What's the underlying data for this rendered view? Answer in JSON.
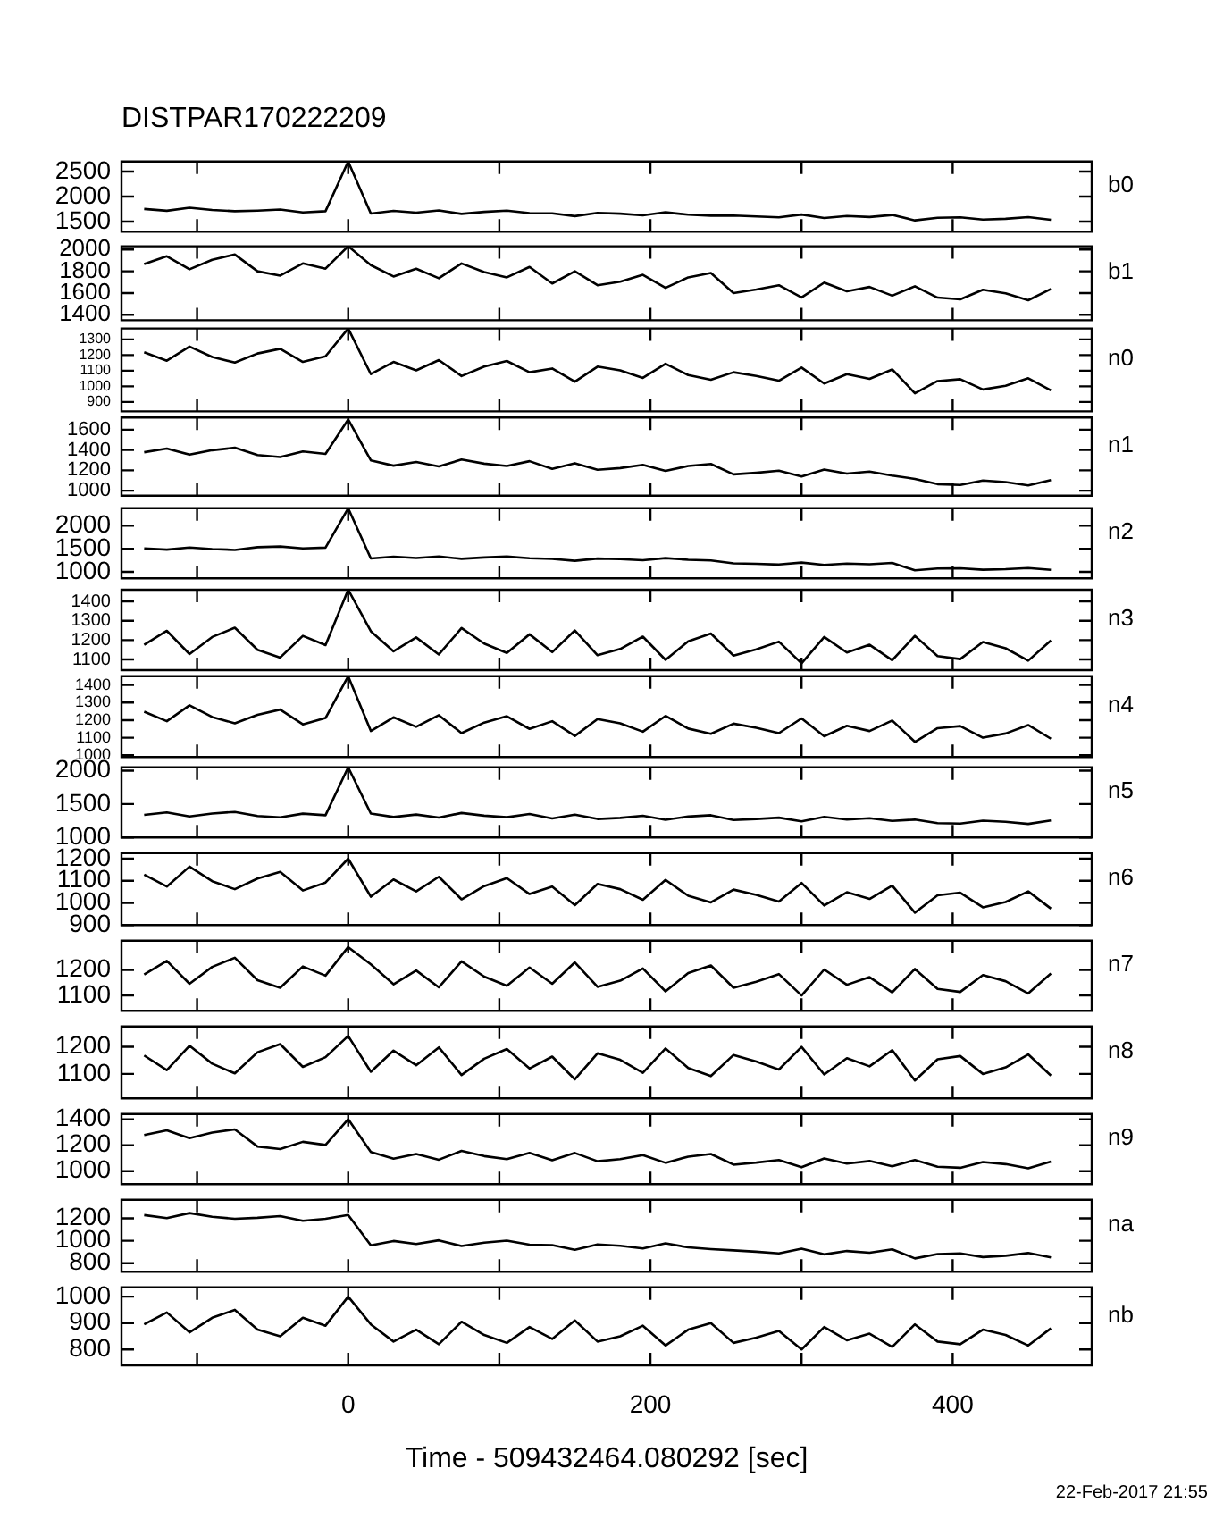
{
  "chart_data": [
    {
      "type": "line",
      "title": "DISTPAR170222209",
      "y2label": "b0",
      "tick_labels": "y",
      "xlim": [
        -150,
        492
      ],
      "xticks": [
        {
          "value": -100,
          "label": null
        },
        0,
        {
          "value": 100,
          "label": null
        },
        200,
        {
          "value": 300,
          "label": null
        },
        400
      ],
      "ylim": [
        1300,
        2700
      ],
      "yticks": [
        1500,
        2000,
        2500
      ],
      "x": [
        -135,
        -120,
        -105,
        -90,
        -75,
        -60,
        -45,
        -30,
        -15,
        0,
        15,
        30,
        45,
        60,
        75,
        90,
        105,
        120,
        135,
        150,
        165,
        180,
        195,
        210,
        225,
        240,
        255,
        270,
        285,
        300,
        315,
        330,
        345,
        360,
        375,
        390,
        405,
        420,
        435,
        450,
        465
      ],
      "series": [
        {
          "color": "#000000",
          "values": [
            1752,
            1716,
            1776,
            1732,
            1708,
            1720,
            1740,
            1684,
            1708,
            2700,
            1662,
            1714,
            1678,
            1722,
            1654,
            1694,
            1718,
            1670,
            1666,
            1610,
            1674,
            1658,
            1626,
            1686,
            1638,
            1618,
            1620,
            1604,
            1584,
            1640,
            1572,
            1612,
            1592,
            1632,
            1524,
            1576,
            1584,
            1540,
            1556,
            1588,
            1536
          ]
        }
      ]
    },
    {
      "type": "line",
      "y2label": "b1",
      "tick_labels": "y",
      "xlim": [
        -150,
        492
      ],
      "xticks": [
        {
          "value": -100,
          "label": null
        },
        0,
        {
          "value": 100,
          "label": null
        },
        200,
        {
          "value": 300,
          "label": null
        },
        400
      ],
      "ylim": [
        1350,
        2030
      ],
      "yticks": [
        1400,
        1600,
        1800,
        2000
      ],
      "x": [
        -135,
        -120,
        -105,
        -90,
        -75,
        -60,
        -45,
        -30,
        -15,
        0,
        15,
        30,
        45,
        60,
        75,
        90,
        105,
        120,
        135,
        150,
        165,
        180,
        195,
        210,
        225,
        240,
        255,
        270,
        285,
        300,
        315,
        330,
        345,
        360,
        375,
        390,
        405,
        420,
        435,
        450,
        465
      ],
      "series": [
        {
          "color": "#000000",
          "values": [
            1866,
            1938,
            1818,
            1906,
            1954,
            1800,
            1760,
            1872,
            1824,
            2030,
            1856,
            1752,
            1824,
            1736,
            1872,
            1792,
            1744,
            1840,
            1688,
            1800,
            1672,
            1704,
            1768,
            1648,
            1744,
            1784,
            1600,
            1632,
            1672,
            1560,
            1696,
            1616,
            1656,
            1576,
            1662,
            1558,
            1542,
            1630,
            1598,
            1534,
            1638
          ]
        }
      ]
    },
    {
      "type": "line",
      "y2label": "n0",
      "tick_labels": "y",
      "xlim": [
        -150,
        492
      ],
      "xticks": [
        {
          "value": -100,
          "label": null
        },
        0,
        {
          "value": 100,
          "label": null
        },
        200,
        {
          "value": 300,
          "label": null
        },
        400
      ],
      "ylim": [
        840,
        1370
      ],
      "yticks": [
        900,
        1000,
        1100,
        1200,
        1300
      ],
      "x": [
        -135,
        -120,
        -105,
        -90,
        -75,
        -60,
        -45,
        -30,
        -15,
        0,
        15,
        30,
        45,
        60,
        75,
        90,
        105,
        120,
        135,
        150,
        165,
        180,
        195,
        210,
        225,
        240,
        255,
        270,
        285,
        300,
        315,
        330,
        345,
        360,
        375,
        390,
        405,
        420,
        435,
        450,
        465
      ],
      "series": [
        {
          "color": "#000000",
          "values": [
            1218,
            1164,
            1254,
            1188,
            1152,
            1210,
            1240,
            1156,
            1192,
            1370,
            1078,
            1156,
            1102,
            1168,
            1066,
            1126,
            1162,
            1090,
            1114,
            1030,
            1126,
            1102,
            1054,
            1144,
            1072,
            1042,
            1090,
            1066,
            1036,
            1120,
            1018,
            1078,
            1048,
            1108,
            956,
            1034,
            1046,
            980,
            1004,
            1052,
            974
          ]
        }
      ]
    },
    {
      "type": "line",
      "y2label": "n1",
      "tick_labels": "y",
      "xlim": [
        -150,
        492
      ],
      "xticks": [
        {
          "value": -100,
          "label": null
        },
        0,
        {
          "value": 100,
          "label": null
        },
        200,
        {
          "value": 300,
          "label": null
        },
        400
      ],
      "ylim": [
        950,
        1720
      ],
      "yticks": [
        1000,
        1200,
        1400,
        1600
      ],
      "x": [
        -135,
        -120,
        -105,
        -90,
        -75,
        -60,
        -45,
        -30,
        -15,
        0,
        15,
        30,
        45,
        60,
        75,
        90,
        105,
        120,
        135,
        150,
        165,
        180,
        195,
        210,
        225,
        240,
        255,
        270,
        285,
        300,
        315,
        330,
        345,
        360,
        375,
        390,
        405,
        420,
        435,
        450,
        465
      ],
      "series": [
        {
          "color": "#000000",
          "values": [
            1378,
            1414,
            1354,
            1398,
            1422,
            1350,
            1330,
            1386,
            1362,
            1700,
            1298,
            1246,
            1282,
            1238,
            1306,
            1266,
            1242,
            1290,
            1214,
            1270,
            1206,
            1222,
            1254,
            1194,
            1242,
            1262,
            1160,
            1176,
            1196,
            1140,
            1208,
            1168,
            1188,
            1148,
            1116,
            1064,
            1056,
            1100,
            1084,
            1052,
            1104
          ]
        }
      ]
    },
    {
      "type": "line",
      "y2label": "n2",
      "tick_labels": "y",
      "xlim": [
        -150,
        492
      ],
      "xticks": [
        {
          "value": -100,
          "label": null
        },
        0,
        {
          "value": 100,
          "label": null
        },
        200,
        {
          "value": 300,
          "label": null
        },
        400
      ],
      "ylim": [
        860,
        2380
      ],
      "yticks": [
        1000,
        1500,
        2000
      ],
      "x": [
        -135,
        -120,
        -105,
        -90,
        -75,
        -60,
        -45,
        -30,
        -15,
        0,
        15,
        30,
        45,
        60,
        75,
        90,
        105,
        120,
        135,
        150,
        165,
        180,
        195,
        210,
        225,
        240,
        255,
        270,
        285,
        300,
        315,
        330,
        345,
        360,
        375,
        390,
        405,
        420,
        435,
        450,
        465
      ],
      "series": [
        {
          "color": "#000000",
          "values": [
            1509,
            1482,
            1527,
            1494,
            1476,
            1535,
            1550,
            1508,
            1526,
            2380,
            1289,
            1328,
            1301,
            1334,
            1283,
            1313,
            1331,
            1295,
            1282,
            1240,
            1288,
            1276,
            1252,
            1297,
            1261,
            1246,
            1185,
            1173,
            1158,
            1200,
            1149,
            1179,
            1164,
            1194,
            1033,
            1072,
            1078,
            1045,
            1057,
            1081,
            1042
          ]
        }
      ]
    },
    {
      "type": "line",
      "y2label": "n3",
      "tick_labels": "y",
      "xlim": [
        -150,
        492
      ],
      "xticks": [
        {
          "value": -100,
          "label": null
        },
        0,
        {
          "value": 100,
          "label": null
        },
        200,
        {
          "value": 300,
          "label": null
        },
        400
      ],
      "ylim": [
        1045,
        1460
      ],
      "yticks": [
        1100,
        1200,
        1300,
        1400
      ],
      "x": [
        -135,
        -120,
        -105,
        -90,
        -75,
        -60,
        -45,
        -30,
        -15,
        0,
        15,
        30,
        45,
        60,
        75,
        90,
        105,
        120,
        135,
        150,
        165,
        180,
        195,
        210,
        225,
        240,
        255,
        270,
        285,
        300,
        315,
        330,
        345,
        360,
        375,
        390,
        405,
        420,
        435,
        450,
        465
      ],
      "series": [
        {
          "color": "#000000",
          "values": [
            1176,
            1248,
            1128,
            1216,
            1264,
            1150,
            1110,
            1222,
            1174,
            1460,
            1246,
            1142,
            1214,
            1126,
            1262,
            1182,
            1134,
            1230,
            1138,
            1250,
            1122,
            1154,
            1218,
            1098,
            1194,
            1234,
            1120,
            1152,
            1192,
            1080,
            1216,
            1136,
            1176,
            1096,
            1222,
            1118,
            1102,
            1190,
            1158,
            1094,
            1198
          ]
        }
      ]
    },
    {
      "type": "line",
      "y2label": "n4",
      "tick_labels": "y",
      "xlim": [
        -150,
        492
      ],
      "xticks": [
        {
          "value": -100,
          "label": null
        },
        0,
        {
          "value": 100,
          "label": null
        },
        200,
        {
          "value": 300,
          "label": null
        },
        400
      ],
      "ylim": [
        990,
        1450
      ],
      "yticks": [
        1000,
        1100,
        1200,
        1300,
        1400
      ],
      "x": [
        -135,
        -120,
        -105,
        -90,
        -75,
        -60,
        -45,
        -30,
        -15,
        0,
        15,
        30,
        45,
        60,
        75,
        90,
        105,
        120,
        135,
        150,
        165,
        180,
        195,
        210,
        225,
        240,
        255,
        270,
        285,
        300,
        315,
        330,
        345,
        360,
        375,
        390,
        405,
        420,
        435,
        450,
        465
      ],
      "series": [
        {
          "color": "#000000",
          "values": [
            1248,
            1194,
            1284,
            1218,
            1182,
            1230,
            1260,
            1176,
            1212,
            1450,
            1138,
            1216,
            1162,
            1228,
            1126,
            1186,
            1222,
            1150,
            1194,
            1110,
            1206,
            1182,
            1134,
            1224,
            1152,
            1122,
            1180,
            1156,
            1126,
            1210,
            1108,
            1168,
            1138,
            1198,
            1076,
            1154,
            1166,
            1100,
            1124,
            1172,
            1094
          ]
        }
      ]
    },
    {
      "type": "line",
      "y2label": "n5",
      "tick_labels": "y",
      "xlim": [
        -150,
        492
      ],
      "xticks": [
        {
          "value": -100,
          "label": null
        },
        0,
        {
          "value": 100,
          "label": null
        },
        200,
        {
          "value": 300,
          "label": null
        },
        400
      ],
      "ylim": [
        1000,
        2050
      ],
      "yticks": [
        1000,
        1500,
        2000
      ],
      "x": [
        -135,
        -120,
        -105,
        -90,
        -75,
        -60,
        -45,
        -30,
        -15,
        0,
        15,
        30,
        45,
        60,
        75,
        90,
        105,
        120,
        135,
        150,
        165,
        180,
        195,
        210,
        225,
        240,
        255,
        270,
        285,
        300,
        315,
        330,
        345,
        360,
        375,
        390,
        405,
        420,
        435,
        450,
        465
      ],
      "series": [
        {
          "color": "#000000",
          "values": [
            1338,
            1374,
            1314,
            1358,
            1382,
            1320,
            1300,
            1356,
            1332,
            2050,
            1358,
            1306,
            1342,
            1298,
            1366,
            1326,
            1302,
            1350,
            1284,
            1340,
            1276,
            1292,
            1324,
            1264,
            1312,
            1332,
            1260,
            1276,
            1296,
            1240,
            1308,
            1268,
            1288,
            1248,
            1266,
            1214,
            1206,
            1250,
            1234,
            1202,
            1254
          ]
        }
      ]
    },
    {
      "type": "line",
      "y2label": "n6",
      "tick_labels": "y",
      "xlim": [
        -150,
        492
      ],
      "xticks": [
        {
          "value": -100,
          "label": null
        },
        0,
        {
          "value": 100,
          "label": null
        },
        200,
        {
          "value": 300,
          "label": null
        },
        400
      ],
      "ylim": [
        900,
        1225
      ],
      "yticks": [
        900,
        1000,
        1100,
        1200
      ],
      "x": [
        -135,
        -120,
        -105,
        -90,
        -75,
        -60,
        -45,
        -30,
        -15,
        0,
        15,
        30,
        45,
        60,
        75,
        90,
        105,
        120,
        135,
        150,
        165,
        180,
        195,
        210,
        225,
        240,
        255,
        270,
        285,
        300,
        315,
        330,
        345,
        360,
        375,
        390,
        405,
        420,
        435,
        450,
        465
      ],
      "series": [
        {
          "color": "#000000",
          "values": [
            1128,
            1074,
            1164,
            1098,
            1062,
            1110,
            1140,
            1056,
            1092,
            1200,
            1028,
            1106,
            1052,
            1118,
            1016,
            1076,
            1112,
            1040,
            1074,
            990,
            1086,
            1062,
            1014,
            1104,
            1032,
            1002,
            1060,
            1036,
            1006,
            1090,
            988,
            1048,
            1018,
            1078,
            956,
            1034,
            1046,
            980,
            1004,
            1052,
            974
          ]
        }
      ]
    },
    {
      "type": "line",
      "y2label": "n7",
      "tick_labels": "y",
      "xlim": [
        -150,
        492
      ],
      "xticks": [
        {
          "value": -100,
          "label": null
        },
        0,
        {
          "value": 100,
          "label": null
        },
        200,
        {
          "value": 300,
          "label": null
        },
        400
      ],
      "ylim": [
        1040,
        1315
      ],
      "yticks": [
        1100,
        1200
      ],
      "x": [
        -135,
        -120,
        -105,
        -90,
        -75,
        -60,
        -45,
        -30,
        -15,
        0,
        15,
        30,
        45,
        60,
        75,
        90,
        105,
        120,
        135,
        150,
        165,
        180,
        195,
        210,
        225,
        240,
        255,
        270,
        285,
        300,
        315,
        330,
        345,
        360,
        375,
        390,
        405,
        420,
        435,
        450,
        465
      ],
      "series": [
        {
          "color": "#000000",
          "values": [
            1182,
            1236,
            1146,
            1212,
            1248,
            1160,
            1130,
            1214,
            1178,
            1290,
            1222,
            1144,
            1198,
            1132,
            1234,
            1174,
            1138,
            1210,
            1146,
            1230,
            1134,
            1158,
            1206,
            1116,
            1188,
            1218,
            1130,
            1154,
            1184,
            1100,
            1202,
            1142,
            1172,
            1112,
            1204,
            1126,
            1114,
            1180,
            1156,
            1108,
            1186
          ]
        }
      ]
    },
    {
      "type": "line",
      "y2label": "n8",
      "tick_labels": "y",
      "xlim": [
        -150,
        492
      ],
      "xticks": [
        {
          "value": -100,
          "label": null
        },
        0,
        {
          "value": 100,
          "label": null
        },
        200,
        {
          "value": 300,
          "label": null
        },
        400
      ],
      "ylim": [
        1010,
        1275
      ],
      "yticks": [
        1100,
        1200
      ],
      "x": [
        -135,
        -120,
        -105,
        -90,
        -75,
        -60,
        -45,
        -30,
        -15,
        0,
        15,
        30,
        45,
        60,
        75,
        90,
        105,
        120,
        135,
        150,
        165,
        180,
        195,
        210,
        225,
        240,
        255,
        270,
        285,
        300,
        315,
        330,
        345,
        360,
        375,
        390,
        405,
        420,
        435,
        450,
        465
      ],
      "series": [
        {
          "color": "#000000",
          "values": [
            1168,
            1114,
            1204,
            1138,
            1102,
            1180,
            1210,
            1126,
            1162,
            1240,
            1108,
            1186,
            1132,
            1198,
            1096,
            1156,
            1192,
            1120,
            1164,
            1080,
            1176,
            1152,
            1104,
            1194,
            1122,
            1092,
            1170,
            1146,
            1116,
            1200,
            1098,
            1158,
            1128,
            1188,
            1076,
            1154,
            1166,
            1100,
            1124,
            1172,
            1094
          ]
        }
      ]
    },
    {
      "type": "line",
      "y2label": "n9",
      "tick_labels": "y",
      "xlim": [
        -150,
        492
      ],
      "xticks": [
        {
          "value": -100,
          "label": null
        },
        0,
        {
          "value": 100,
          "label": null
        },
        200,
        {
          "value": 300,
          "label": null
        },
        400
      ],
      "ylim": [
        900,
        1440
      ],
      "yticks": [
        1000,
        1200,
        1400
      ],
      "x": [
        -135,
        -120,
        -105,
        -90,
        -75,
        -60,
        -45,
        -30,
        -15,
        0,
        15,
        30,
        45,
        60,
        75,
        90,
        105,
        120,
        135,
        150,
        165,
        180,
        195,
        210,
        225,
        240,
        255,
        270,
        285,
        300,
        315,
        330,
        345,
        360,
        375,
        390,
        405,
        420,
        435,
        450,
        465
      ],
      "series": [
        {
          "color": "#000000",
          "values": [
            1278,
            1314,
            1254,
            1298,
            1322,
            1190,
            1170,
            1226,
            1202,
            1400,
            1148,
            1096,
            1132,
            1088,
            1156,
            1116,
            1092,
            1140,
            1084,
            1140,
            1076,
            1092,
            1124,
            1064,
            1112,
            1132,
            1050,
            1066,
            1086,
            1030,
            1098,
            1058,
            1078,
            1038,
            1086,
            1034,
            1026,
            1070,
            1054,
            1022,
            1074
          ]
        }
      ]
    },
    {
      "type": "line",
      "y2label": "na",
      "tick_labels": "y",
      "xlim": [
        -150,
        492
      ],
      "xticks": [
        {
          "value": -100,
          "label": null
        },
        0,
        {
          "value": 100,
          "label": null
        },
        200,
        {
          "value": 300,
          "label": null
        },
        400
      ],
      "ylim": [
        725,
        1365
      ],
      "yticks": [
        800,
        1000,
        1200
      ],
      "x": [
        -135,
        -120,
        -105,
        -90,
        -75,
        -60,
        -45,
        -30,
        -15,
        0,
        15,
        30,
        45,
        60,
        75,
        90,
        105,
        120,
        135,
        150,
        165,
        180,
        195,
        210,
        225,
        240,
        255,
        270,
        285,
        300,
        315,
        330,
        345,
        360,
        375,
        390,
        405,
        420,
        435,
        450,
        465
      ],
      "series": [
        {
          "color": "#000000",
          "values": [
            1229,
            1202,
            1247,
            1214,
            1196,
            1205,
            1220,
            1178,
            1196,
            1230,
            959,
            998,
            971,
            1004,
            953,
            983,
            1001,
            965,
            962,
            920,
            968,
            956,
            932,
            977,
            941,
            926,
            915,
            903,
            888,
            930,
            879,
            909,
            894,
            924,
            843,
            882,
            888,
            855,
            867,
            891,
            852
          ]
        }
      ]
    },
    {
      "type": "line",
      "y2label": "nb",
      "xlabel": "Time - 509432464.080292 [sec]",
      "annotations": [
        "22-Feb-2017 21:55"
      ],
      "xlim": [
        -150,
        492
      ],
      "xticks": [
        {
          "value": -100,
          "label": null
        },
        0,
        {
          "value": 100,
          "label": null
        },
        200,
        {
          "value": 300,
          "label": null
        },
        400
      ],
      "ylim": [
        740,
        1035
      ],
      "yticks": [
        800,
        900,
        1000
      ],
      "x": [
        -135,
        -120,
        -105,
        -90,
        -75,
        -60,
        -45,
        -30,
        -15,
        0,
        15,
        30,
        45,
        60,
        75,
        90,
        105,
        120,
        135,
        150,
        165,
        180,
        195,
        210,
        225,
        240,
        255,
        270,
        285,
        300,
        315,
        330,
        345,
        360,
        375,
        390,
        405,
        420,
        435,
        450,
        465
      ],
      "series": [
        {
          "color": "#000000",
          "values": [
            895,
            940,
            865,
            920,
            950,
            875,
            850,
            920,
            890,
            1000,
            895,
            830,
            875,
            820,
            905,
            855,
            825,
            885,
            840,
            910,
            830,
            850,
            890,
            815,
            875,
            900,
            825,
            845,
            870,
            800,
            885,
            835,
            860,
            810,
            895,
            830,
            820,
            875,
            855,
            815,
            880
          ]
        }
      ]
    }
  ]
}
